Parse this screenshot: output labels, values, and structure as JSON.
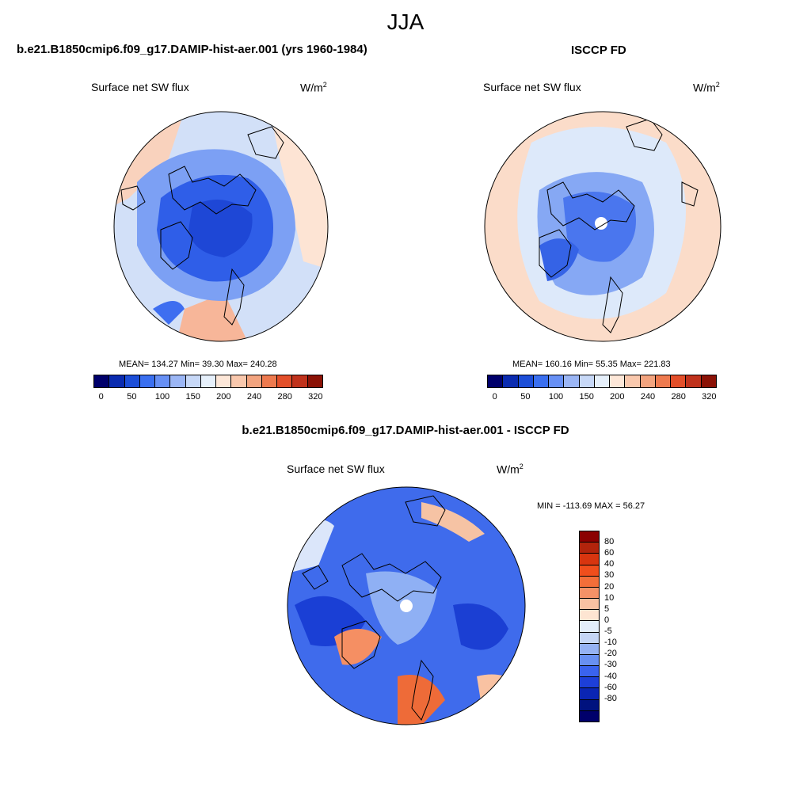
{
  "title": "JJA",
  "panels": [
    {
      "id": "model",
      "header": "b.e21.B1850cmip6.f09_g17.DAMIP-hist-aer.001 (yrs 1960-1984)",
      "variable": "Surface net SW flux",
      "units": "W/m",
      "units_sup": "2",
      "stats_text": "MEAN= 134.27  Min=  39.30  Max= 240.28",
      "colorbar_labels": [
        "0",
        "50",
        "100",
        "150",
        "200",
        "240",
        "280",
        "320"
      ]
    },
    {
      "id": "obs",
      "header": "ISCCP FD",
      "variable": "Surface net SW flux",
      "units": "W/m",
      "units_sup": "2",
      "stats_text": "MEAN= 160.16  Min=  55.35  Max= 221.83",
      "colorbar_labels": [
        "0",
        "50",
        "100",
        "150",
        "200",
        "240",
        "280",
        "320"
      ]
    },
    {
      "id": "diff",
      "header": "b.e21.B1850cmip6.f09_g17.DAMIP-hist-aer.001 - ISCCP FD",
      "variable": "Surface net SW flux",
      "units": "W/m",
      "units_sup": "2",
      "stats_text": "MIN = -113.69 MAX =  56.27",
      "colorbar_labels": [
        "80",
        "60",
        "40",
        "30",
        "20",
        "10",
        "5",
        "0",
        "-5",
        "-10",
        "-20",
        "-30",
        "-40",
        "-60",
        "-80"
      ]
    }
  ],
  "colors": {
    "abs_scale": [
      "#00006b",
      "#0a2bb0",
      "#1c4ed8",
      "#3a6ff0",
      "#6790f5",
      "#9bb6f5",
      "#c7d8f7",
      "#e6f0fb",
      "#fde7d8",
      "#f9c8ad",
      "#f3a47f",
      "#ee7a4f",
      "#e34f2a",
      "#c0321c",
      "#8b1206"
    ],
    "diff_scale": [
      "#8b0000",
      "#b2240c",
      "#d8350f",
      "#f04e1c",
      "#f36e39",
      "#f59267",
      "#f9c2a2",
      "#fde5d2",
      "#e3eefa",
      "#c5d6f5",
      "#95b2f3",
      "#6890f2",
      "#3a63ee",
      "#1d3fd8",
      "#0a25b3",
      "#00127e",
      "#00006b"
    ],
    "land_outline": "#000000",
    "missing": "#ffffff"
  }
}
